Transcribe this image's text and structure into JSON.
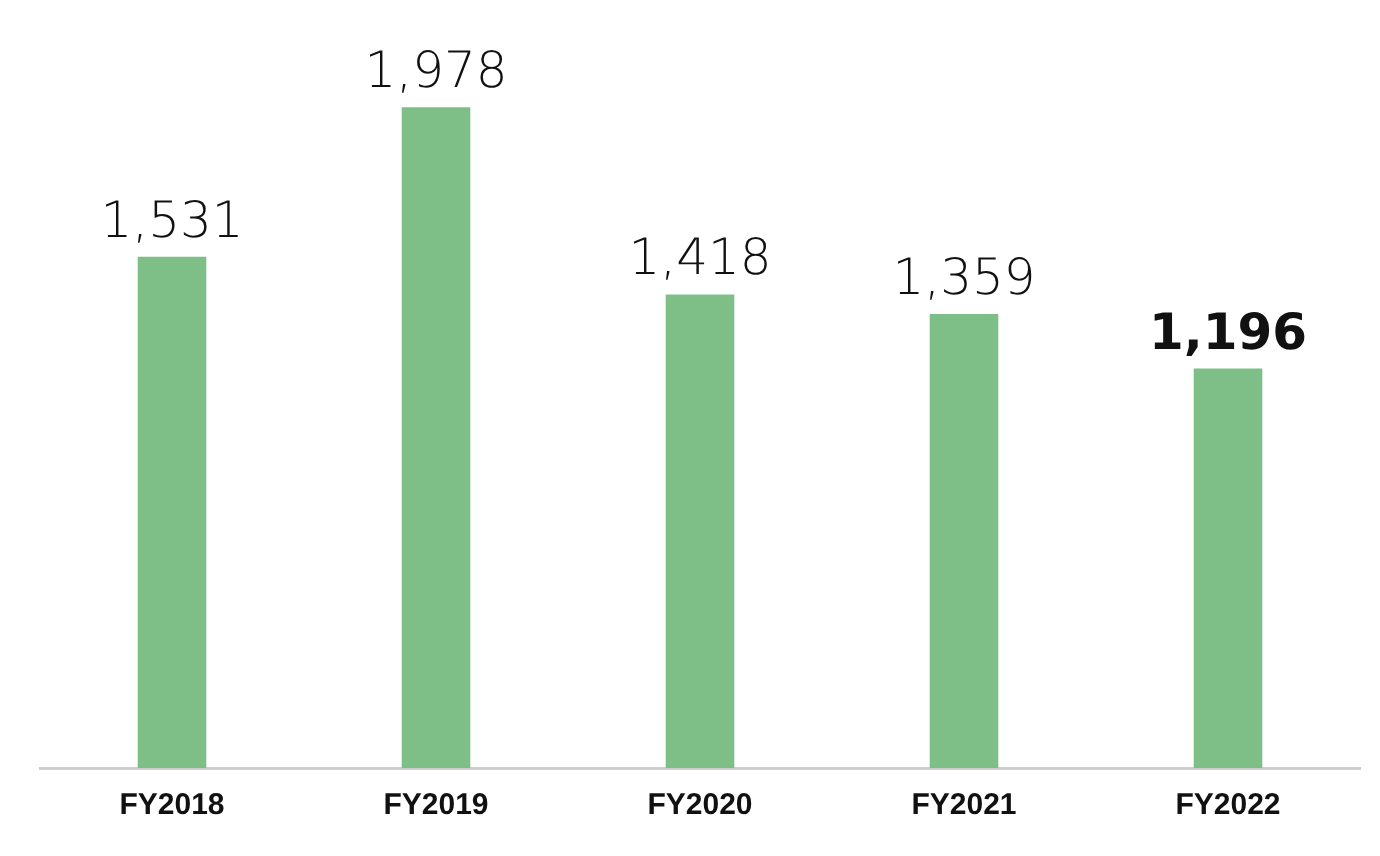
{
  "chart_data": {
    "type": "bar",
    "categories": [
      "FY2018",
      "FY2019",
      "FY2020",
      "FY2021",
      "FY2022"
    ],
    "values": [
      1531,
      1978,
      1418,
      1359,
      1196
    ],
    "value_labels": [
      "1,531",
      "1,978",
      "1,418",
      "1,359",
      "1,196"
    ],
    "color": "#7dbf87",
    "tick_labels": "x",
    "grid": false,
    "legend": false
  }
}
